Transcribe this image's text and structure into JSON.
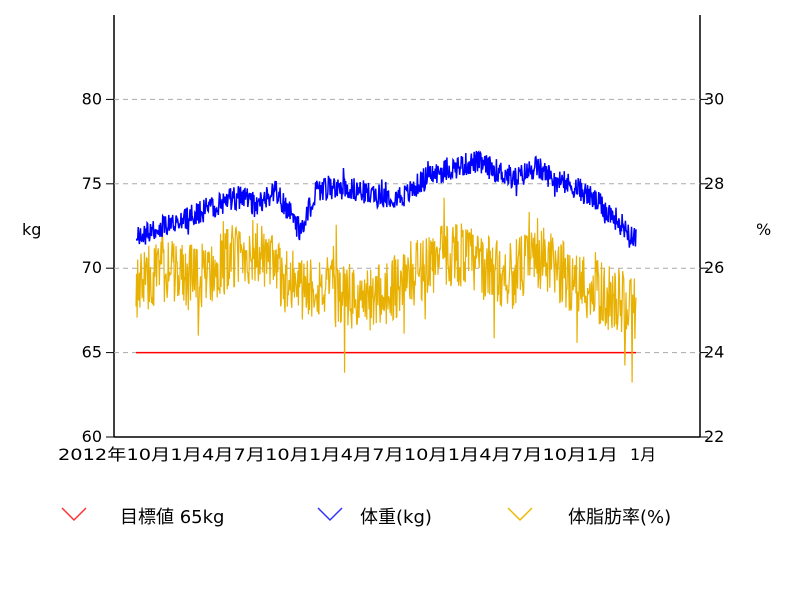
{
  "chart_data": {
    "type": "line",
    "title": "",
    "y_left": {
      "label": "kg",
      "ticks": [
        60,
        65,
        70,
        75,
        80
      ],
      "range": [
        60,
        85
      ]
    },
    "y_right": {
      "label": "%",
      "ticks": [
        22,
        24,
        26,
        28,
        30
      ],
      "range": [
        22,
        32
      ]
    },
    "x_axis": {
      "tick_labels_overlapping": "2012年10月…2014年01月",
      "last_label": "月"
    },
    "grid": "dashed horizontal at ticks 65–80",
    "legend_position": "bottom",
    "target_line": {
      "name": "目標値 65kg",
      "value": 65,
      "color": "#ff0000"
    },
    "series": [
      {
        "name": "体重(kg)",
        "axis": "left",
        "color": "#0000ff",
        "anchors": [
          [
            0,
            71.8
          ],
          [
            0.06,
            72.6
          ],
          [
            0.12,
            73.2
          ],
          [
            0.18,
            74.0
          ],
          [
            0.22,
            74.3
          ],
          [
            0.24,
            73.6
          ],
          [
            0.28,
            74.6
          ],
          [
            0.3,
            73.6
          ],
          [
            0.33,
            72.2
          ],
          [
            0.36,
            74.6
          ],
          [
            0.42,
            74.8
          ],
          [
            0.48,
            74.3
          ],
          [
            0.54,
            74.3
          ],
          [
            0.58,
            75.4
          ],
          [
            0.64,
            76.0
          ],
          [
            0.68,
            76.3
          ],
          [
            0.72,
            75.8
          ],
          [
            0.76,
            75.3
          ],
          [
            0.8,
            76.0
          ],
          [
            0.84,
            75.2
          ],
          [
            0.88,
            74.8
          ],
          [
            0.91,
            74.2
          ],
          [
            0.95,
            73.2
          ],
          [
            1.0,
            71.8
          ]
        ]
      },
      {
        "name": "体脂肪率(%)",
        "axis": "right",
        "color": "#e8b000",
        "anchors": [
          [
            0,
            25.6
          ],
          [
            0.06,
            26.0
          ],
          [
            0.12,
            25.7
          ],
          [
            0.18,
            26.2
          ],
          [
            0.24,
            26.4
          ],
          [
            0.28,
            25.9
          ],
          [
            0.32,
            25.5
          ],
          [
            0.36,
            25.6
          ],
          [
            0.4,
            25.4
          ],
          [
            0.46,
            25.2
          ],
          [
            0.52,
            25.6
          ],
          [
            0.58,
            26.1
          ],
          [
            0.64,
            26.4
          ],
          [
            0.7,
            26.0
          ],
          [
            0.75,
            25.8
          ],
          [
            0.8,
            26.3
          ],
          [
            0.85,
            25.9
          ],
          [
            0.9,
            25.5
          ],
          [
            0.95,
            25.3
          ],
          [
            1.0,
            25.0
          ]
        ]
      }
    ]
  },
  "axis_texts": {
    "left_label": "kg",
    "right_label": "%",
    "x_tick_text": "2012年10月1月4月7月10月1月4月7月10月1月4月7月10月1月",
    "x_last": "1月"
  },
  "legend": {
    "target_label": "目標値 65kg",
    "weight_label": "体重(kg)",
    "fat_label": "体脂肪率(%)"
  }
}
